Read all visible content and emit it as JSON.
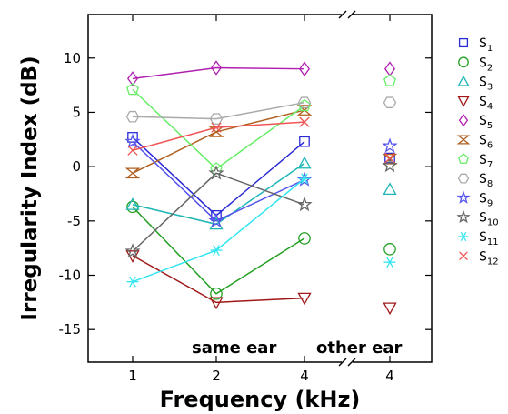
{
  "chart_data": {
    "type": "line",
    "xlabel": "Frequency (kHz)",
    "ylabel": "Irregularity Index (dB)",
    "ylim": [
      -18,
      14
    ],
    "yticks": [
      10,
      5,
      0,
      -5,
      -10,
      -15
    ],
    "x_groups": [
      "same ear",
      "other ear"
    ],
    "x_categories": [
      "1",
      "2",
      "4",
      "4"
    ],
    "annotations": [
      "same ear",
      "other ear"
    ],
    "legend_position": "right",
    "series": [
      {
        "name": "S1",
        "sub": "1",
        "color": "#2b2bd6",
        "marker": "square",
        "same_ear": [
          2.7,
          -4.5,
          2.3
        ],
        "other_ear": 0.8
      },
      {
        "name": "S2",
        "sub": "2",
        "color": "#22a022",
        "marker": "circle",
        "same_ear": [
          -3.7,
          -11.7,
          -6.6
        ],
        "other_ear": -7.6
      },
      {
        "name": "S3",
        "sub": "3",
        "color": "#1fb5b5",
        "marker": "triangle",
        "same_ear": [
          -3.5,
          -5.3,
          0.3
        ],
        "other_ear": -2.1
      },
      {
        "name": "S4",
        "sub": "4",
        "color": "#a01818",
        "marker": "invtri",
        "same_ear": [
          -8.2,
          -12.5,
          -12.1
        ],
        "other_ear": -13.0
      },
      {
        "name": "S5",
        "sub": "5",
        "color": "#b020b0",
        "marker": "diamond",
        "same_ear": [
          8.1,
          9.1,
          9.0
        ],
        "other_ear": 9.0
      },
      {
        "name": "S6",
        "sub": "6",
        "color": "#b06020",
        "marker": "bowtie",
        "same_ear": [
          -0.6,
          3.2,
          5.2
        ],
        "other_ear": 0.7
      },
      {
        "name": "S7",
        "sub": "7",
        "color": "#66ee66",
        "marker": "pentagon",
        "same_ear": [
          7.1,
          -0.2,
          5.6
        ],
        "other_ear": 7.9
      },
      {
        "name": "S8",
        "sub": "8",
        "color": "#aaaaaa",
        "marker": "hexagon",
        "same_ear": [
          4.6,
          4.4,
          5.9
        ],
        "other_ear": 5.9
      },
      {
        "name": "S9",
        "sub": "9",
        "color": "#5555ee",
        "marker": "star",
        "same_ear": [
          2.3,
          -5.0,
          -1.2
        ],
        "other_ear": 1.9
      },
      {
        "name": "S10",
        "sub": "10",
        "color": "#666666",
        "marker": "star",
        "same_ear": [
          -7.8,
          -0.6,
          -3.5
        ],
        "other_ear": 0.1
      },
      {
        "name": "S11",
        "sub": "11",
        "color": "#33e5f0",
        "marker": "asterisk",
        "same_ear": [
          -10.6,
          -7.7,
          -1.1
        ],
        "other_ear": -8.8
      },
      {
        "name": "S12",
        "sub": "12",
        "color": "#f05555",
        "marker": "cross",
        "same_ear": [
          1.5,
          3.6,
          4.1
        ],
        "other_ear": 0.8
      }
    ]
  }
}
